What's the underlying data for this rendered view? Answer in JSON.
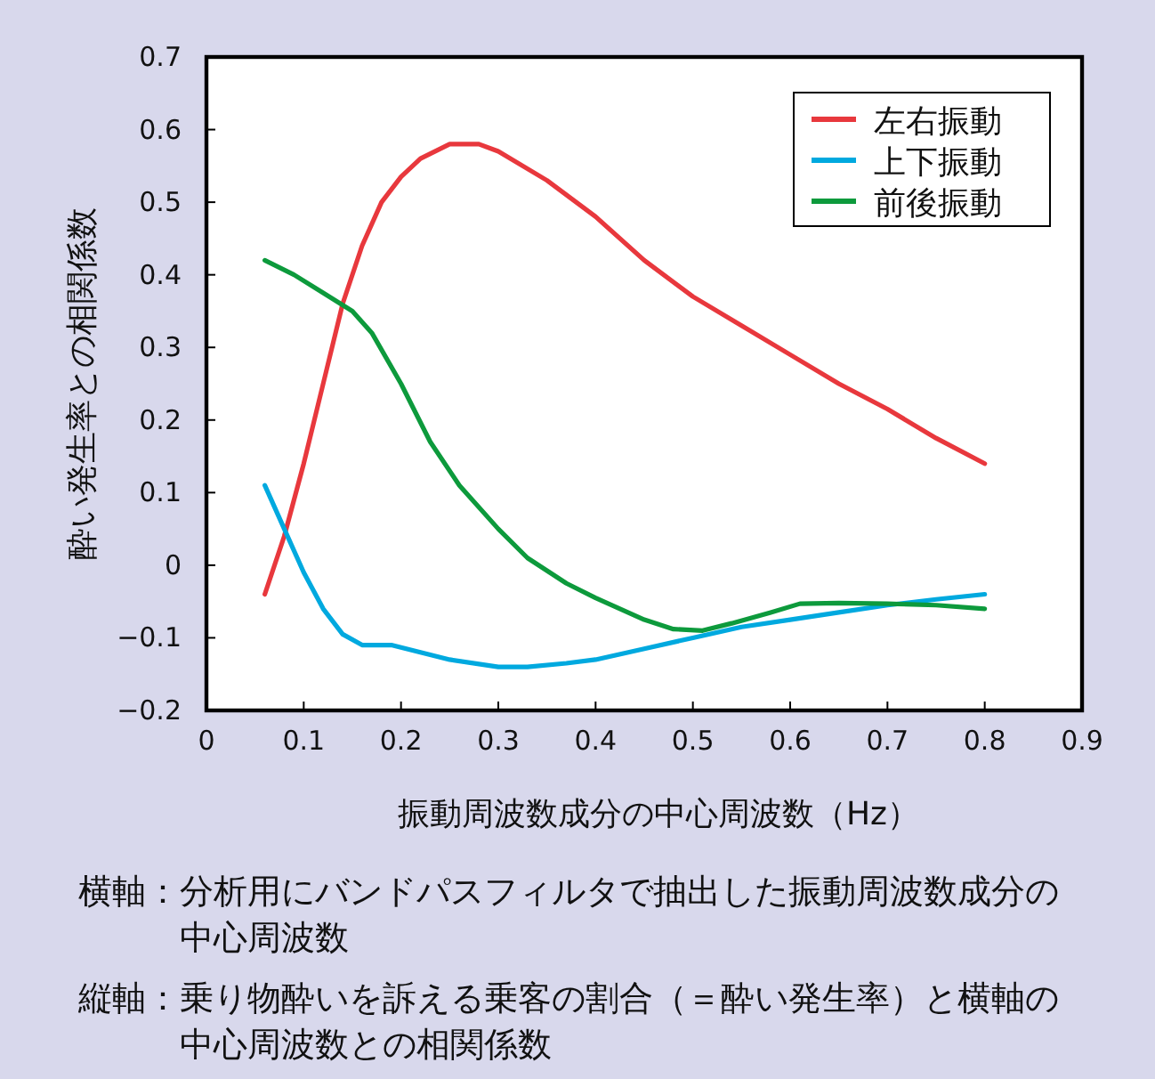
{
  "chart_data": {
    "type": "line",
    "xlabel": "振動周波数成分の中心周波数（Hz）",
    "ylabel": "酔い発生率との相関係数",
    "annotations": [
      "横軸：分析用にバンドパスフィルタで抽出した振動周波数成分の中心周波数",
      "縦軸：乗り物酔いを訴える乗客の割合（＝酔い発生率）と横軸の中心周波数との相関係数"
    ],
    "xlim": [
      0,
      0.9
    ],
    "xticks": [
      0,
      0.1,
      0.2,
      0.3,
      0.4,
      0.5,
      0.6,
      0.7,
      0.8,
      0.9
    ],
    "ylim": [
      -0.2,
      0.7
    ],
    "yticks": [
      {
        "value": -0.2,
        "label": "−0.2"
      },
      {
        "value": -0.1,
        "label": "−0.1"
      },
      0,
      0.1,
      0.2,
      0.3,
      0.4,
      0.5,
      0.6,
      0.7
    ],
    "grid": false,
    "legend": "top right",
    "marker": "none",
    "line_style": "solid",
    "series": [
      {
        "name": "左右振動",
        "color": "#e8383d",
        "x": [
          0.06,
          0.08,
          0.1,
          0.12,
          0.14,
          0.16,
          0.18,
          0.2,
          0.22,
          0.25,
          0.28,
          0.3,
          0.35,
          0.4,
          0.45,
          0.5,
          0.55,
          0.6,
          0.65,
          0.7,
          0.75,
          0.8
        ],
        "values": [
          -0.04,
          0.04,
          0.14,
          0.25,
          0.36,
          0.44,
          0.5,
          0.535,
          0.56,
          0.58,
          0.58,
          0.57,
          0.53,
          0.48,
          0.42,
          0.37,
          0.33,
          0.29,
          0.25,
          0.215,
          0.175,
          0.14
        ]
      },
      {
        "name": "上下振動",
        "color": "#00a9df",
        "x": [
          0.06,
          0.08,
          0.1,
          0.12,
          0.14,
          0.16,
          0.17,
          0.19,
          0.22,
          0.25,
          0.3,
          0.33,
          0.37,
          0.4,
          0.45,
          0.5,
          0.55,
          0.6,
          0.65,
          0.7,
          0.75,
          0.8
        ],
        "values": [
          0.11,
          0.05,
          -0.01,
          -0.06,
          -0.095,
          -0.11,
          -0.11,
          -0.11,
          -0.12,
          -0.13,
          -0.14,
          -0.14,
          -0.135,
          -0.13,
          -0.115,
          -0.1,
          -0.085,
          -0.075,
          -0.065,
          -0.055,
          -0.047,
          -0.04
        ]
      },
      {
        "name": "前後振動",
        "color": "#0d9a3c",
        "x": [
          0.06,
          0.09,
          0.12,
          0.15,
          0.17,
          0.2,
          0.23,
          0.26,
          0.3,
          0.33,
          0.37,
          0.4,
          0.45,
          0.48,
          0.51,
          0.54,
          0.58,
          0.61,
          0.65,
          0.7,
          0.75,
          0.8
        ],
        "values": [
          0.42,
          0.4,
          0.375,
          0.35,
          0.32,
          0.25,
          0.17,
          0.11,
          0.05,
          0.01,
          -0.025,
          -0.045,
          -0.075,
          -0.088,
          -0.09,
          -0.08,
          -0.065,
          -0.053,
          -0.052,
          -0.053,
          -0.055,
          -0.06
        ]
      }
    ]
  }
}
